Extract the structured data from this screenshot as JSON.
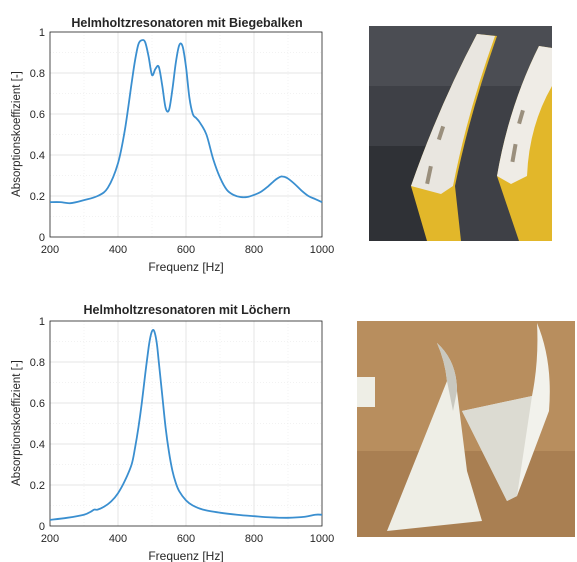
{
  "chart_data": [
    {
      "type": "line",
      "title": "Helmholtzresonatoren mit Biegebalken",
      "xlabel": "Frequenz [Hz]",
      "ylabel": "Absorptionskoeffizient [-]",
      "xlim": [
        200,
        1000
      ],
      "ylim": [
        0,
        1
      ],
      "xticks": [
        "200",
        "400",
        "600",
        "800",
        "1000"
      ],
      "yticks": [
        "0",
        "0.2",
        "0.4",
        "0.6",
        "0.8",
        "1"
      ],
      "grid": true,
      "line_color": "#3a8fd0",
      "x": [
        200,
        230,
        260,
        300,
        340,
        370,
        400,
        420,
        440,
        450,
        460,
        470,
        480,
        490,
        500,
        510,
        520,
        530,
        540,
        550,
        560,
        570,
        580,
        590,
        600,
        610,
        620,
        630,
        640,
        660,
        680,
        700,
        720,
        740,
        760,
        780,
        800,
        820,
        840,
        860,
        870,
        880,
        890,
        900,
        920,
        940,
        960,
        980,
        1000
      ],
      "y": [
        0.17,
        0.17,
        0.165,
        0.18,
        0.2,
        0.24,
        0.36,
        0.52,
        0.75,
        0.86,
        0.94,
        0.96,
        0.95,
        0.88,
        0.79,
        0.82,
        0.83,
        0.74,
        0.63,
        0.62,
        0.72,
        0.85,
        0.935,
        0.93,
        0.83,
        0.68,
        0.6,
        0.58,
        0.56,
        0.5,
        0.38,
        0.29,
        0.23,
        0.205,
        0.195,
        0.195,
        0.205,
        0.22,
        0.245,
        0.275,
        0.287,
        0.295,
        0.293,
        0.285,
        0.258,
        0.226,
        0.2,
        0.185,
        0.17
      ]
    },
    {
      "type": "line",
      "title": "Helmholtzresonatoren mit Löchern",
      "xlabel": "Frequenz [Hz]",
      "ylabel": "Absorptionskoeffizient [-]",
      "xlim": [
        200,
        1000
      ],
      "ylim": [
        0,
        1
      ],
      "xticks": [
        "200",
        "400",
        "600",
        "800",
        "1000"
      ],
      "yticks": [
        "0",
        "0.2",
        "0.4",
        "0.6",
        "0.8",
        "1"
      ],
      "grid": true,
      "line_color": "#3a8fd0",
      "x": [
        200,
        250,
        300,
        320,
        330,
        340,
        360,
        380,
        400,
        420,
        440,
        450,
        460,
        470,
        480,
        490,
        495,
        500,
        505,
        510,
        515,
        520,
        530,
        540,
        550,
        560,
        570,
        580,
        600,
        620,
        650,
        700,
        750,
        800,
        850,
        900,
        950,
        980,
        1000
      ],
      "y": [
        0.03,
        0.04,
        0.055,
        0.07,
        0.08,
        0.08,
        0.095,
        0.12,
        0.16,
        0.22,
        0.3,
        0.38,
        0.48,
        0.6,
        0.74,
        0.87,
        0.92,
        0.95,
        0.955,
        0.93,
        0.88,
        0.8,
        0.64,
        0.48,
        0.36,
        0.27,
        0.21,
        0.17,
        0.125,
        0.1,
        0.08,
        0.065,
        0.055,
        0.048,
        0.042,
        0.04,
        0.045,
        0.055,
        0.055
      ]
    }
  ],
  "photos": [
    {
      "name": "bent-beam-resonators-photo",
      "colors": {
        "bg": "#3e4046",
        "foam": "#e9e6e0",
        "base": "#e2b72a",
        "slot": "#9a8f7d"
      }
    },
    {
      "name": "perforated-resonators-photo",
      "colors": {
        "bg": "#b88e5e",
        "foam": "#eeeee6",
        "shade": "#c9c8bf"
      }
    }
  ]
}
